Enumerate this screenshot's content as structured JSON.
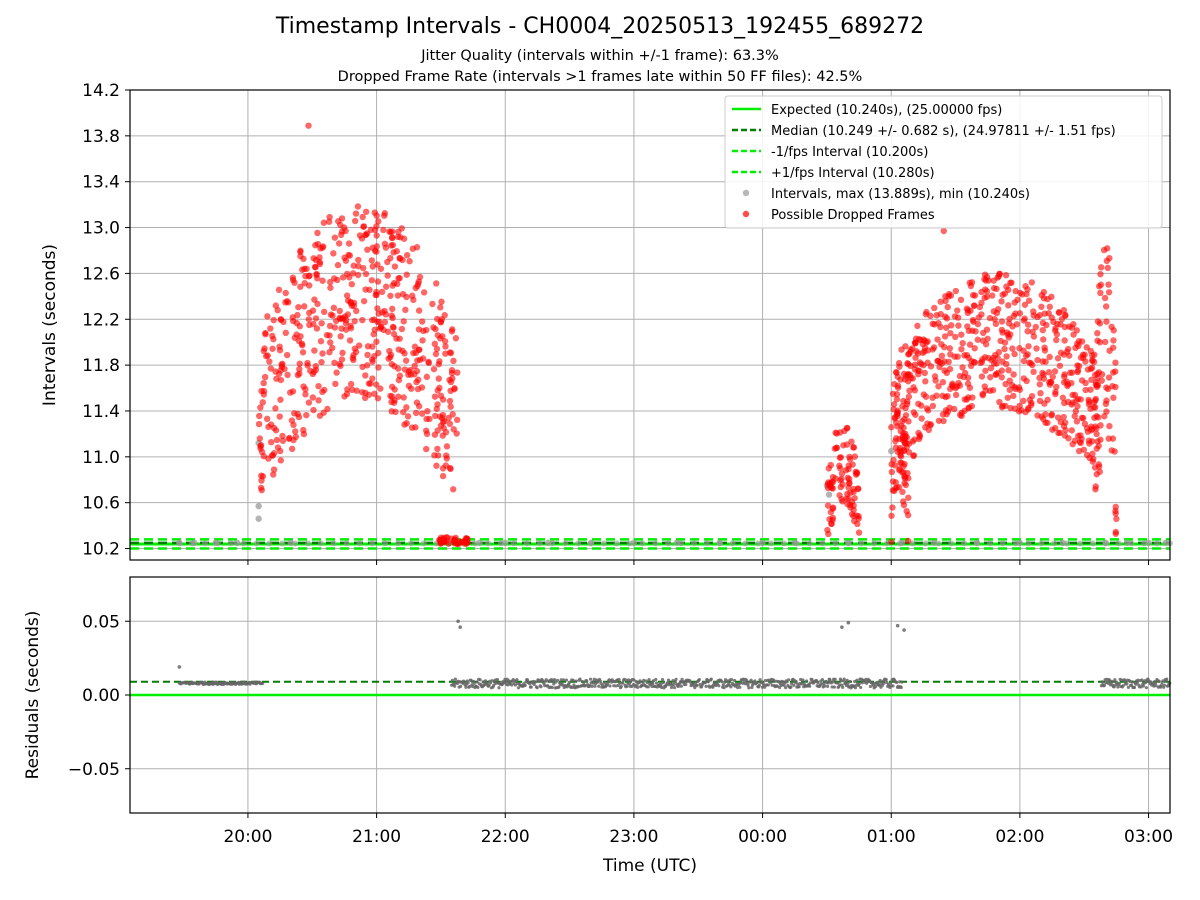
{
  "figure": {
    "title": "Timestamp Intervals - CH0004_20250513_192455_689272",
    "subtitle_1": "Jitter Quality (intervals within +/-1 frame): 63.3%",
    "subtitle_2": "Dropped Frame Rate (intervals >1 frames late within 50 FF files): 42.5%"
  },
  "colors": {
    "expected": "#00ee00",
    "median": "#007f00",
    "bound": "#00ee00",
    "interval_points": "#999999",
    "dropped_points": "#ff0000",
    "residual_points": "#666666",
    "grid": "#b0b0b0"
  },
  "chart_data": [
    {
      "type": "scatter",
      "id": "intervals",
      "xlabel": "",
      "ylabel": "Intervals (seconds)",
      "xlim": [
        "19:05",
        "03:10"
      ],
      "ylim": [
        10.1,
        14.2
      ],
      "yticks": [
        10.2,
        10.6,
        11.0,
        11.4,
        11.8,
        12.2,
        12.6,
        13.0,
        13.4,
        13.8,
        14.2
      ],
      "ytick_labels": [
        "10.2",
        "10.6",
        "11.0",
        "11.4",
        "11.8",
        "12.2",
        "12.6",
        "13.0",
        "13.4",
        "13.8",
        "14.2"
      ],
      "xticks": [
        "20:00",
        "21:00",
        "22:00",
        "23:00",
        "00:00",
        "01:00",
        "02:00",
        "03:00"
      ],
      "grid": true,
      "legend_position": "top-right",
      "lines": [
        {
          "name": "Expected (10.240s), (25.00000 fps)",
          "y": 10.24,
          "style": "solid",
          "color": "#00ee00"
        },
        {
          "name": "Median (10.249 +/- 0.682 s), (24.97811 +/- 1.51 fps)",
          "y": 10.249,
          "style": "dashed",
          "color": "#007f00"
        },
        {
          "name": "-1/fps Interval (10.200s)",
          "y": 10.2,
          "style": "dashed",
          "color": "#00ee00"
        },
        {
          "name": "+1/fps Interval (10.280s)",
          "y": 10.28,
          "style": "dashed",
          "color": "#00ee00"
        }
      ],
      "series": [
        {
          "name": "Intervals, max (13.889s), min (10.240s)",
          "color": "#999999",
          "points": [
            [
              "19:28",
              10.25
            ],
            [
              "19:35",
              10.25
            ],
            [
              "19:45",
              10.25
            ],
            [
              "19:55",
              10.25
            ],
            [
              "20:05",
              11.12
            ],
            [
              "20:05",
              10.57
            ],
            [
              "20:05",
              10.46
            ],
            [
              "20:20",
              10.25
            ],
            [
              "21:30",
              10.25
            ],
            [
              "21:48",
              10.25
            ],
            [
              "22:00",
              10.25
            ],
            [
              "22:20",
              10.25
            ],
            [
              "22:40",
              10.25
            ],
            [
              "23:00",
              10.25
            ],
            [
              "23:20",
              10.25
            ],
            [
              "23:40",
              10.25
            ],
            [
              "00:00",
              10.25
            ],
            [
              "00:15",
              10.25
            ],
            [
              "00:30",
              10.75
            ],
            [
              "00:31",
              10.67
            ],
            [
              "00:40",
              10.25
            ],
            [
              "01:00",
              11.05
            ],
            [
              "01:05",
              10.25
            ],
            [
              "01:20",
              10.25
            ],
            [
              "01:40",
              10.25
            ],
            [
              "02:00",
              10.25
            ],
            [
              "02:20",
              10.25
            ],
            [
              "02:40",
              10.25
            ],
            [
              "02:50",
              10.25
            ],
            [
              "03:00",
              10.25
            ],
            [
              "03:08",
              10.25
            ]
          ]
        },
        {
          "name": "Possible Dropped Frames",
          "color": "#ff0000",
          "clusters": [
            {
              "x_from": "20:05",
              "x_to": "21:38",
              "y_min": 10.6,
              "y_max": 13.2,
              "y_peak": 13.889
            },
            {
              "x_from": "21:29",
              "x_to": "21:43",
              "y_min": 10.24,
              "y_max": 10.3
            },
            {
              "x_from": "00:30",
              "x_to": "00:45",
              "y_min": 10.24,
              "y_max": 11.3
            },
            {
              "x_from": "01:00",
              "x_to": "01:08",
              "y_min": 10.24,
              "y_max": 11.5
            },
            {
              "x_from": "01:00",
              "x_to": "02:38",
              "y_min": 10.8,
              "y_max": 12.6,
              "y_peak": 12.97
            },
            {
              "x_from": "02:35",
              "x_to": "02:45",
              "y_min": 10.24,
              "y_max": 12.9
            }
          ]
        }
      ]
    },
    {
      "type": "scatter",
      "id": "residuals",
      "xlabel": "Time (UTC)",
      "ylabel": "Residuals (seconds)",
      "xlim": [
        "19:05",
        "03:10"
      ],
      "ylim": [
        -0.08,
        0.08
      ],
      "yticks": [
        0.05,
        0.0,
        -0.05
      ],
      "ytick_labels": [
        "0.05",
        "0.00",
        "−0.05"
      ],
      "xticks": [
        "20:00",
        "21:00",
        "22:00",
        "23:00",
        "00:00",
        "01:00",
        "02:00",
        "03:00"
      ],
      "xtick_labels": [
        "20:00",
        "21:00",
        "22:00",
        "23:00",
        "00:00",
        "01:00",
        "02:00",
        "03:00"
      ],
      "grid": true,
      "lines": [
        {
          "name": "Expected",
          "y": 0.0,
          "style": "solid",
          "color": "#00ee00"
        },
        {
          "name": "Median",
          "y": 0.009,
          "style": "dashed",
          "color": "#007f00"
        }
      ],
      "series": [
        {
          "name": "Residuals",
          "color": "#666666",
          "outliers": [
            [
              "19:28",
              0.019
            ],
            [
              "21:38",
              0.05
            ],
            [
              "21:39",
              0.046
            ],
            [
              "00:37",
              0.046
            ],
            [
              "00:40",
              0.049
            ],
            [
              "01:03",
              0.047
            ],
            [
              "01:06",
              0.044
            ]
          ],
          "clusters": [
            {
              "x_from": "19:28",
              "x_to": "20:07",
              "y_center": 0.008,
              "spread": 0.0008
            },
            {
              "x_from": "21:35",
              "x_to": "01:05",
              "y_center": 0.0078,
              "spread": 0.003
            },
            {
              "x_from": "02:38",
              "x_to": "03:10",
              "y_center": 0.0078,
              "spread": 0.003
            }
          ]
        }
      ]
    }
  ]
}
